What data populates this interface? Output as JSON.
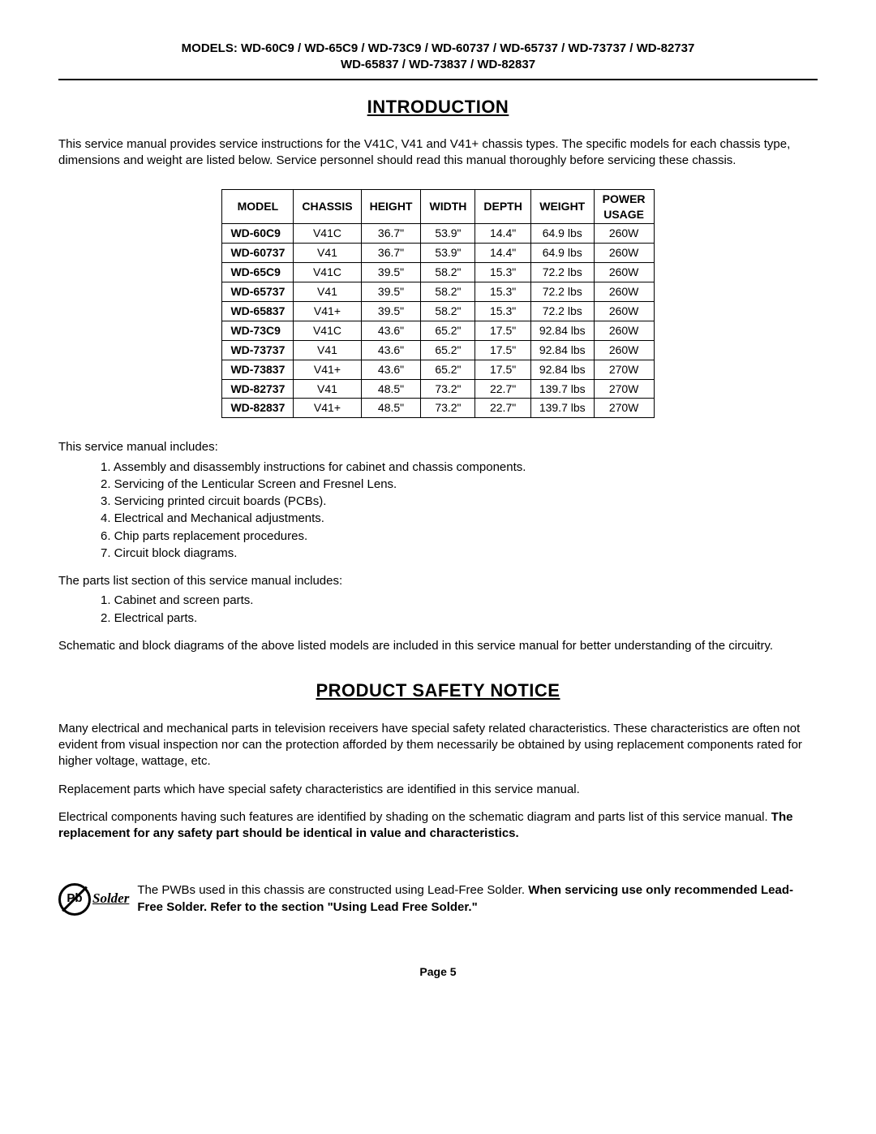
{
  "header": {
    "line1": "MODELS: WD-60C9 / WD-65C9 / WD-73C9 / WD-60737 / WD-65737 / WD-73737 / WD-82737",
    "line2": "WD-65837 / WD-73837 / WD-82837"
  },
  "intro": {
    "title": "INTRODUCTION",
    "para": "This service manual provides service instructions for the V41C, V41 and V41+ chassis types. The specific models for each chassis type, dimensions and weight are listed below.  Service personnel should read this manual thoroughly before servicing these chassis."
  },
  "table": {
    "columns": [
      "MODEL",
      "CHASSIS",
      "HEIGHT",
      "WIDTH",
      "DEPTH",
      "WEIGHT"
    ],
    "power_col_top": "POWER",
    "power_col_bot": "USAGE",
    "rows": [
      {
        "model": "WD-60C9",
        "chassis": "V41C",
        "height": "36.7\"",
        "width": "53.9\"",
        "depth": "14.4\"",
        "weight": "64.9 lbs",
        "power": "260W"
      },
      {
        "model": "WD-60737",
        "chassis": "V41",
        "height": "36.7\"",
        "width": "53.9\"",
        "depth": "14.4\"",
        "weight": "64.9 lbs",
        "power": "260W"
      },
      {
        "model": "WD-65C9",
        "chassis": "V41C",
        "height": "39.5\"",
        "width": "58.2\"",
        "depth": "15.3\"",
        "weight": "72.2 lbs",
        "power": "260W"
      },
      {
        "model": "WD-65737",
        "chassis": "V41",
        "height": "39.5\"",
        "width": "58.2\"",
        "depth": "15.3\"",
        "weight": "72.2 lbs",
        "power": "260W"
      },
      {
        "model": "WD-65837",
        "chassis": "V41+",
        "height": "39.5\"",
        "width": "58.2\"",
        "depth": "15.3\"",
        "weight": "72.2 lbs",
        "power": "260W"
      },
      {
        "model": "WD-73C9",
        "chassis": "V41C",
        "height": "43.6\"",
        "width": "65.2\"",
        "depth": "17.5\"",
        "weight": "92.84 lbs",
        "power": "260W"
      },
      {
        "model": "WD-73737",
        "chassis": "V41",
        "height": "43.6\"",
        "width": "65.2\"",
        "depth": "17.5\"",
        "weight": "92.84 lbs",
        "power": "260W"
      },
      {
        "model": "WD-73837",
        "chassis": "V41+",
        "height": "43.6\"",
        "width": "65.2\"",
        "depth": "17.5\"",
        "weight": "92.84 lbs",
        "power": "270W"
      },
      {
        "model": "WD-82737",
        "chassis": "V41",
        "height": "48.5\"",
        "width": "73.2\"",
        "depth": "22.7\"",
        "weight": "139.7 lbs",
        "power": "270W"
      },
      {
        "model": "WD-82837",
        "chassis": "V41+",
        "height": "48.5\"",
        "width": "73.2\"",
        "depth": "22.7\"",
        "weight": "139.7 lbs",
        "power": "270W"
      }
    ]
  },
  "includes": {
    "lead": "This service manual includes:",
    "items": [
      {
        "n": "1",
        "t": "Assembly and disassembly instructions for cabinet and chassis components."
      },
      {
        "n": "2",
        "t": "Servicing of the Lenticular Screen and Fresnel Lens."
      },
      {
        "n": "3",
        "t": "Servicing printed circuit boards (PCBs)."
      },
      {
        "n": "4",
        "t": "Electrical and Mechanical adjustments."
      },
      {
        "n": "6",
        "t": "Chip parts replacement procedures."
      },
      {
        "n": "7",
        "t": "Circuit block diagrams."
      }
    ]
  },
  "parts": {
    "lead": "The parts list section of this service manual includes:",
    "items": [
      {
        "n": "1",
        "t": "Cabinet and screen parts."
      },
      {
        "n": "2",
        "t": "Electrical parts."
      }
    ]
  },
  "schematic_para": "Schematic and block diagrams of the above listed models are included in this service manual for better understanding of the circuitry.",
  "safety": {
    "title": "PRODUCT  SAFETY  NOTICE",
    "p1": "Many electrical and mechanical parts in television receivers have special safety related characteristics.  These characteristics are often not evident from visual inspection nor can the protection afforded by them necessarily be obtained by using replacement components rated for higher voltage, wattage, etc.",
    "p2": "Replacement parts which have special safety characteristics are identified in this service manual.",
    "p3a": "Electrical components having such features are identified by shading on the schematic diagram and parts list of this service manual.  ",
    "p3b": "The replacement for any safety part should be identical in value and characteristics."
  },
  "pb": {
    "symbol": "Pb",
    "solder": "Solder",
    "text_a": "The PWBs used in this chassis are constructed using Lead-Free Solder.  ",
    "text_b": "When servicing use only recommended Lead-Free Solder.  Refer to the section \"Using Lead Free Solder.\""
  },
  "page": "Page 5"
}
